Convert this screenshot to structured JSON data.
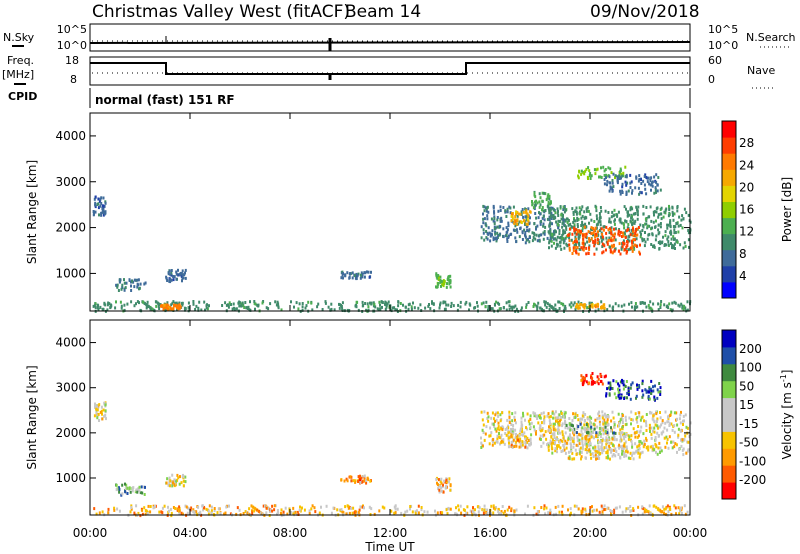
{
  "header": {
    "station": "Christmas Valley West (fitACF)",
    "beam": "Beam 14",
    "date": "09/Nov/2018"
  },
  "noise_panel": {
    "left_label": "N.Sky",
    "right_label": "N.Search",
    "left_ticks": [
      "10^5",
      "10^0"
    ],
    "right_ticks": [
      "10^5",
      "10^0"
    ]
  },
  "freq_panel": {
    "left_label_1": "Freq.",
    "left_label_2": "[MHz]",
    "right_label": "Nave",
    "left_ticks": [
      "18",
      "8"
    ],
    "right_ticks": [
      "60",
      "0"
    ]
  },
  "cpid_panel": {
    "label": "CPID",
    "mode": "normal (fast) 151 RF"
  },
  "chart_data": [
    {
      "type": "heatmap",
      "name_key": "power",
      "ylabel": "Slant Range [km]",
      "y_ticks": [
        "4000",
        "3000",
        "2000",
        "1000"
      ],
      "y_values": [
        4000,
        3000,
        2000,
        1000
      ],
      "ylim": [
        180,
        4500
      ],
      "x_ticks": [
        "00:00",
        "04:00",
        "08:00",
        "12:00",
        "16:00",
        "20:00",
        "00:00"
      ],
      "xlim_hours": [
        0,
        24
      ],
      "colorbar": {
        "label": "Power [dB]",
        "ticks": [
          "28",
          "24",
          "20",
          "16",
          "12",
          "8",
          "4"
        ],
        "tick_values": [
          28,
          24,
          20,
          16,
          12,
          8,
          4
        ],
        "range": [
          0,
          32
        ],
        "colors": [
          "#0000ff",
          "#1f3fa8",
          "#3f6b9a",
          "#3f8a6a",
          "#4caf50",
          "#8fce00",
          "#e3d400",
          "#f6a800",
          "#ff7a00",
          "#ff3d00",
          "#ff0000"
        ]
      },
      "regions": [
        {
          "h0": 0.1,
          "h1": 24,
          "r0": 200,
          "r1": 420,
          "level": 10
        },
        {
          "h0": 2.8,
          "h1": 3.6,
          "r0": 250,
          "r1": 350,
          "level": 24
        },
        {
          "h0": 1.0,
          "h1": 2.2,
          "r0": 650,
          "r1": 900,
          "level": 7
        },
        {
          "h0": 3.0,
          "h1": 3.8,
          "r0": 850,
          "r1": 1100,
          "level": 6
        },
        {
          "h0": 0.1,
          "h1": 0.6,
          "r0": 2300,
          "r1": 2700,
          "level": 6
        },
        {
          "h0": 10.0,
          "h1": 11.2,
          "r0": 920,
          "r1": 1080,
          "level": 6
        },
        {
          "h0": 13.8,
          "h1": 14.4,
          "r0": 720,
          "r1": 1050,
          "level": 14
        },
        {
          "h0": 15.6,
          "h1": 19.0,
          "r0": 1700,
          "r1": 2500,
          "level": 7
        },
        {
          "h0": 16.8,
          "h1": 17.6,
          "r0": 2100,
          "r1": 2400,
          "level": 22
        },
        {
          "h0": 17.6,
          "h1": 18.4,
          "r0": 2400,
          "r1": 2800,
          "level": 12
        },
        {
          "h0": 18.3,
          "h1": 24,
          "r0": 1550,
          "r1": 2500,
          "level": 10
        },
        {
          "h0": 19.0,
          "h1": 22.0,
          "r0": 1450,
          "r1": 2050,
          "level": 28
        },
        {
          "h0": 19.4,
          "h1": 21.4,
          "r0": 3100,
          "r1": 3350,
          "level": 14
        },
        {
          "h0": 20.5,
          "h1": 22.8,
          "r0": 2750,
          "r1": 3200,
          "level": 6
        },
        {
          "h0": 19.4,
          "h1": 20.6,
          "r0": 270,
          "r1": 360,
          "level": 22
        }
      ]
    },
    {
      "type": "heatmap",
      "name_key": "velocity",
      "ylabel": "Slant Range [km]",
      "y_ticks": [
        "4000",
        "3000",
        "2000",
        "1000"
      ],
      "y_values": [
        4000,
        3000,
        2000,
        1000
      ],
      "ylim": [
        180,
        4500
      ],
      "x_ticks": [
        "00:00",
        "04:00",
        "08:00",
        "12:00",
        "16:00",
        "20:00",
        "00:00"
      ],
      "xlim_hours": [
        0,
        24
      ],
      "xlabel": "Time UT",
      "colorbar": {
        "label": "Velocity [m s",
        "label_sup": "-1",
        "label_end": "]",
        "ticks": [
          "200",
          "100",
          "50",
          "15",
          "-15",
          "-50",
          "-100",
          "-200"
        ],
        "colors": [
          "#ff0000",
          "#ff5a00",
          "#ff9a00",
          "#f7c300",
          "#c8c8c8",
          "#c8c8c8",
          "#7fd34b",
          "#3f8a3f",
          "#1f4fa8",
          "#0000c0"
        ]
      },
      "regions": [
        {
          "h0": 0.1,
          "h1": 24,
          "r0": 200,
          "r1": 420,
          "level": 3
        },
        {
          "h0": 1.0,
          "h1": 2.2,
          "r0": 650,
          "r1": 900,
          "level": 6
        },
        {
          "h0": 0.1,
          "h1": 0.6,
          "r0": 2300,
          "r1": 2700,
          "level": 4
        },
        {
          "h0": 3.0,
          "h1": 3.8,
          "r0": 850,
          "r1": 1100,
          "level": 4
        },
        {
          "h0": 10.0,
          "h1": 11.2,
          "r0": 920,
          "r1": 1080,
          "level": 2
        },
        {
          "h0": 13.8,
          "h1": 14.4,
          "r0": 720,
          "r1": 1050,
          "level": 3
        },
        {
          "h0": 15.6,
          "h1": 19.0,
          "r0": 1700,
          "r1": 2500,
          "level": 4
        },
        {
          "h0": 16.8,
          "h1": 17.6,
          "r0": 1700,
          "r1": 2000,
          "level": 3
        },
        {
          "h0": 18.3,
          "h1": 24,
          "r0": 1550,
          "r1": 2500,
          "level": 4
        },
        {
          "h0": 19.0,
          "h1": 22.0,
          "r0": 1450,
          "r1": 2050,
          "level": 4
        },
        {
          "h0": 19.6,
          "h1": 20.6,
          "r0": 3100,
          "r1": 3350,
          "level": 0
        },
        {
          "h0": 20.6,
          "h1": 22.8,
          "r0": 2750,
          "r1": 3200,
          "level": 8
        },
        {
          "h0": 19.0,
          "h1": 21.0,
          "r0": 2000,
          "r1": 2250,
          "level": 6
        }
      ]
    }
  ]
}
